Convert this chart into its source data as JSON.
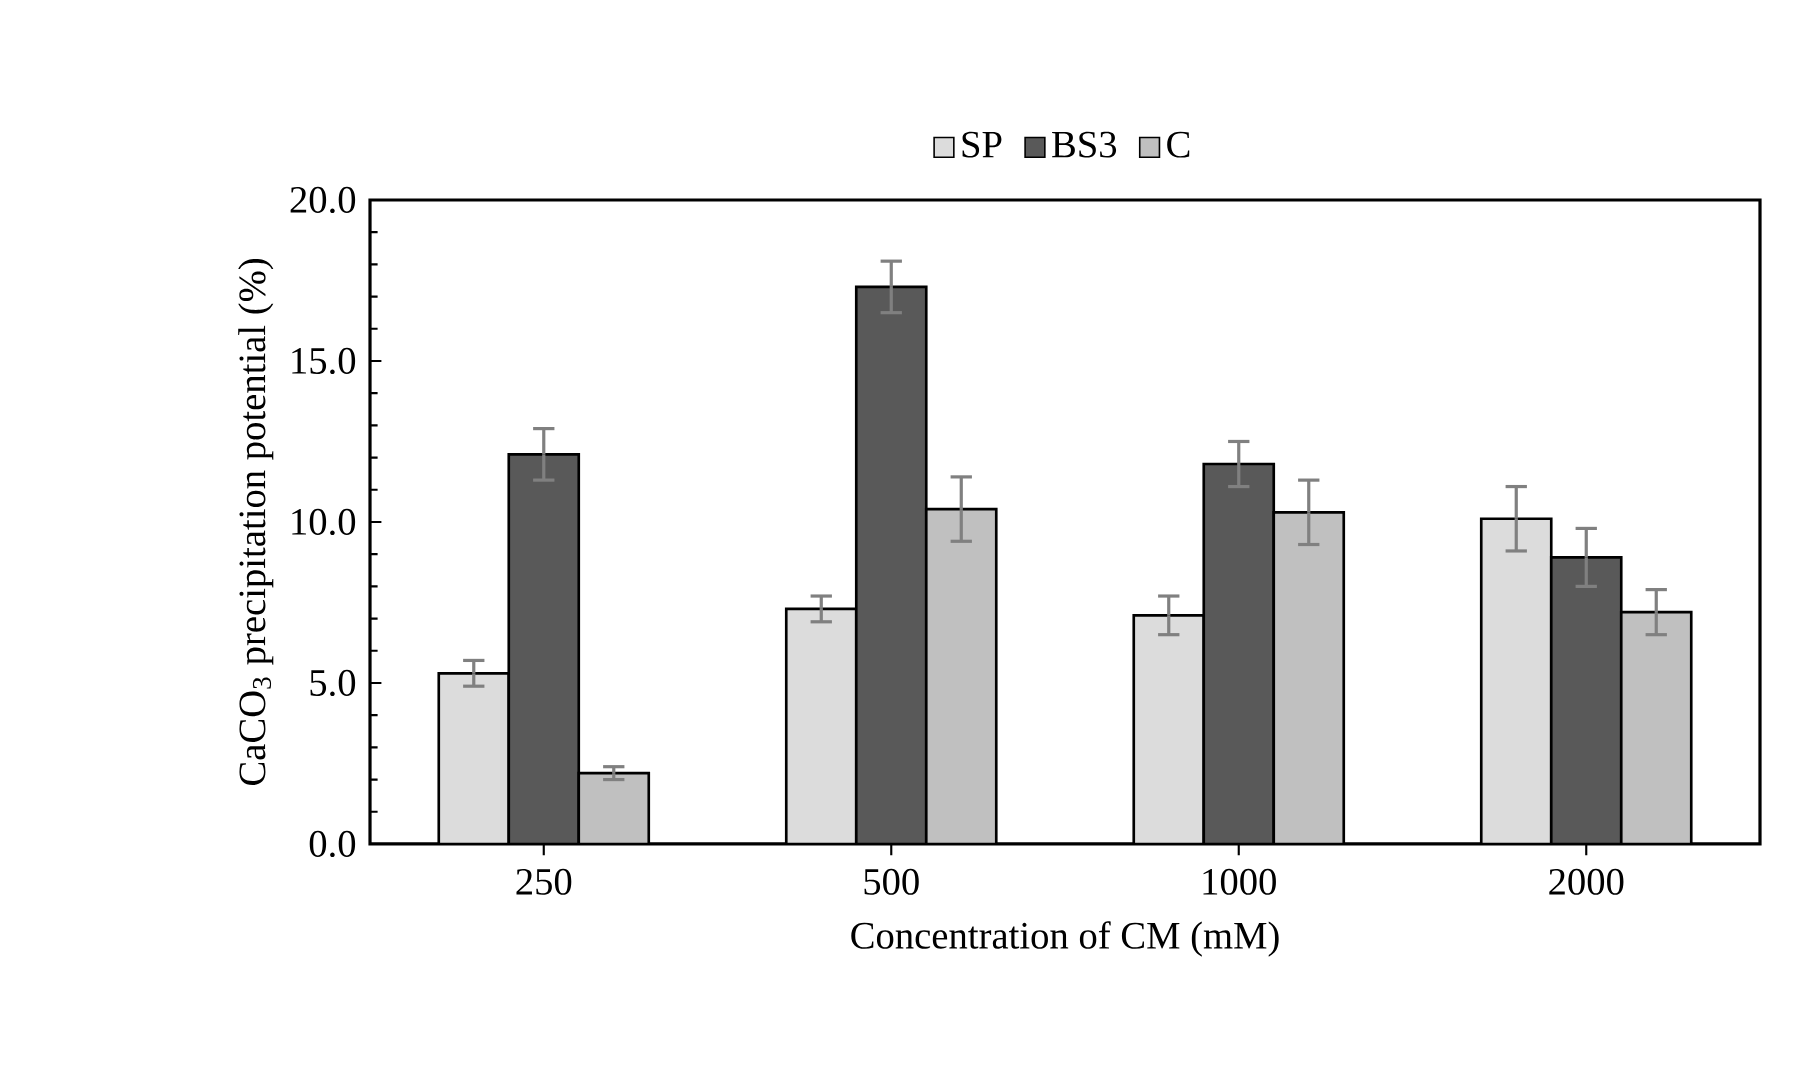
{
  "chart_data": {
    "type": "bar",
    "xlabel": "Concentration of CM (mM)",
    "ylabel": "CaCO$_{3}$  precipitation potential (%)",
    "categories": [
      "250",
      "500",
      "1000",
      "2000"
    ],
    "series": [
      {
        "name": "SP",
        "color": "#dcdcdc",
        "values": [
          5.3,
          7.3,
          7.1,
          10.1
        ],
        "errors": [
          0.4,
          0.4,
          0.6,
          1.0
        ]
      },
      {
        "name": "BS3",
        "color": "#595959",
        "values": [
          12.1,
          17.3,
          11.8,
          8.9
        ],
        "errors": [
          0.8,
          0.8,
          0.7,
          0.9
        ]
      },
      {
        "name": "C",
        "color": "#c0c0c0",
        "values": [
          2.2,
          10.4,
          10.3,
          7.2
        ],
        "errors": [
          0.2,
          1.0,
          1.0,
          0.7
        ]
      }
    ],
    "ylim": [
      0,
      20
    ],
    "yticks": [
      {
        "value": 0,
        "label": "0.0"
      },
      {
        "value": 5,
        "label": "5.0"
      },
      {
        "value": 10,
        "label": "10.0"
      },
      {
        "value": 15,
        "label": "15.0"
      },
      {
        "value": 20,
        "label": "20.0"
      }
    ],
    "legend": "top",
    "grid": false
  }
}
